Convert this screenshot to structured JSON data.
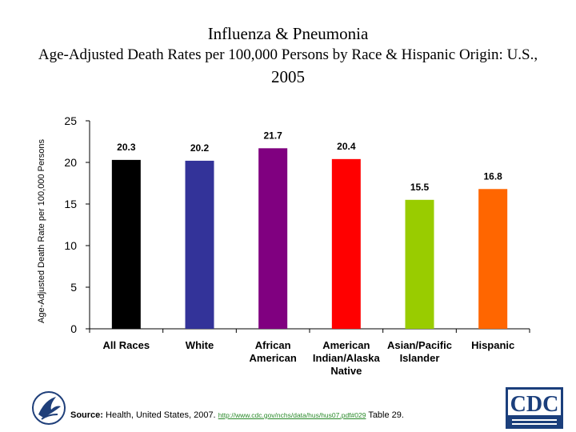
{
  "title": "Influenza & Pneumonia",
  "subtitle_line1": "Age-Adjusted Death Rates per 100,000 Persons by Race & Hispanic Origin: U.S.,",
  "subtitle_line2": "2005",
  "footer": {
    "source_label": "Source:",
    "source_text": "Health, United States, 2007.",
    "link_text": "http://www.cdc.gov/nchs/data/hus/hus07.pdf#029",
    "table_ref": "Table 29."
  },
  "logos": {
    "cdc_text": "CDC"
  },
  "chart_data": {
    "type": "bar",
    "ylabel": "Age-Adjusted Death Rate per 100,000 Persons",
    "ylim": [
      0,
      25
    ],
    "yticks": [
      0,
      5,
      10,
      15,
      20,
      25
    ],
    "grid": false,
    "categories": [
      [
        "All Races"
      ],
      [
        "White"
      ],
      [
        "African",
        "American"
      ],
      [
        "American",
        "Indian/Alaska",
        "Native"
      ],
      [
        "Asian/Pacific",
        "Islander"
      ],
      [
        "Hispanic"
      ]
    ],
    "values": [
      20.3,
      20.2,
      21.7,
      20.4,
      15.5,
      16.8
    ],
    "labels": [
      "20.3",
      "20.2",
      "21.7",
      "20.4",
      "15.5",
      "16.8"
    ],
    "colors": [
      "#000000",
      "#333399",
      "#800080",
      "#ff0000",
      "#99cc00",
      "#ff6600"
    ]
  }
}
